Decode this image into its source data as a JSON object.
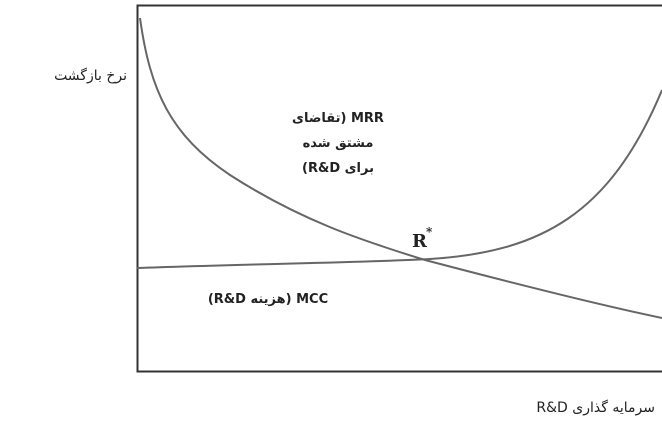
{
  "y_axis_label": "نرخ بازگشت",
  "x_axis_label": "سرمایه گذاری R&D",
  "mrr_label": [
    "MRR (تقاضای",
    "مشتق شده",
    "برای R&D)"
  ],
  "mcc_label": "MCC (هزینه R&D)",
  "equilibrium": {
    "base": "R",
    "sup": "*"
  }
}
